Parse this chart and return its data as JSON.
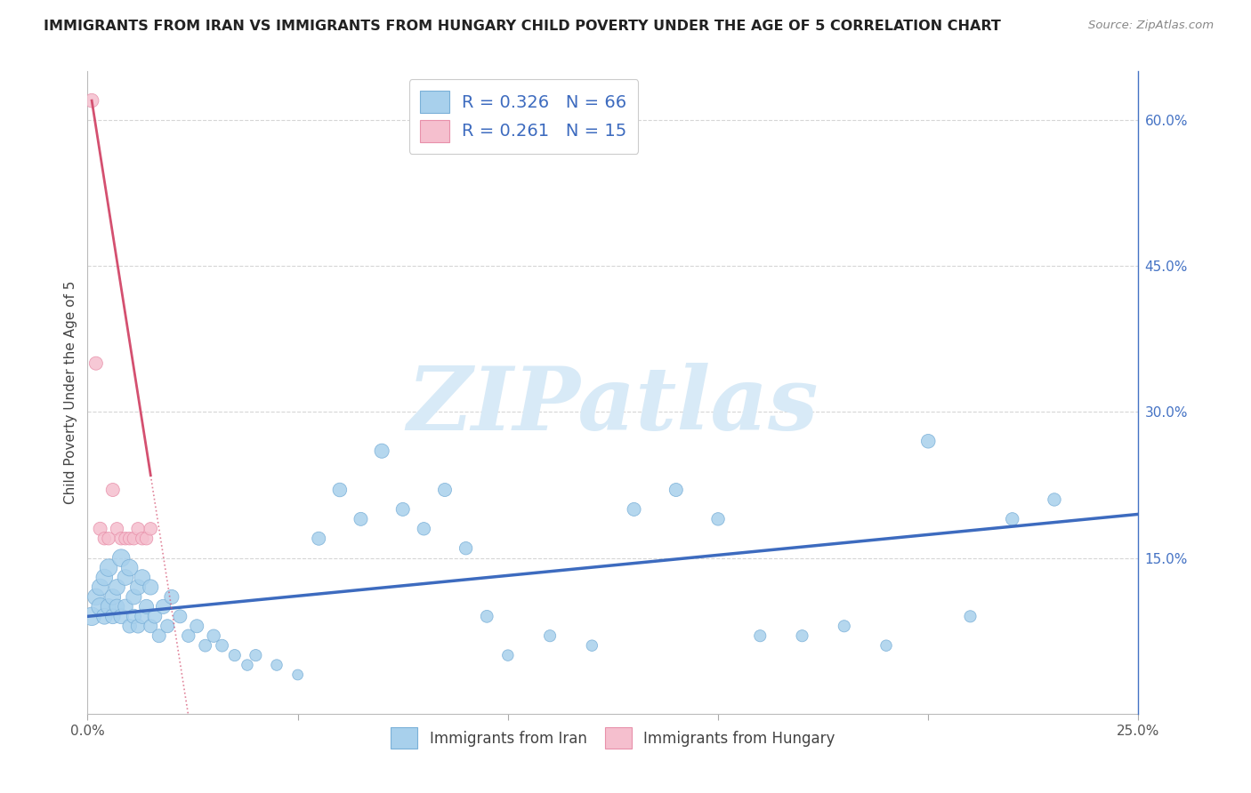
{
  "title": "IMMIGRANTS FROM IRAN VS IMMIGRANTS FROM HUNGARY CHILD POVERTY UNDER THE AGE OF 5 CORRELATION CHART",
  "source": "Source: ZipAtlas.com",
  "ylabel": "Child Poverty Under the Age of 5",
  "xlim": [
    0.0,
    0.25
  ],
  "ylim": [
    -0.01,
    0.65
  ],
  "iran_R": 0.326,
  "iran_N": 66,
  "hungary_R": 0.261,
  "hungary_N": 15,
  "iran_color": "#a8d0ec",
  "iran_edge_color": "#7ab0d8",
  "hungary_color": "#f5bfce",
  "hungary_edge_color": "#e890aa",
  "iran_line_color": "#3d6bbf",
  "hungary_line_color": "#d45070",
  "watermark_color": "#d8eaf7",
  "grid_color": "#cccccc",
  "iran_scatter_x": [
    0.001,
    0.002,
    0.003,
    0.003,
    0.004,
    0.004,
    0.005,
    0.005,
    0.006,
    0.006,
    0.007,
    0.007,
    0.008,
    0.008,
    0.009,
    0.009,
    0.01,
    0.01,
    0.011,
    0.011,
    0.012,
    0.012,
    0.013,
    0.013,
    0.014,
    0.015,
    0.015,
    0.016,
    0.017,
    0.018,
    0.019,
    0.02,
    0.022,
    0.024,
    0.026,
    0.028,
    0.03,
    0.032,
    0.035,
    0.038,
    0.04,
    0.045,
    0.05,
    0.055,
    0.06,
    0.065,
    0.07,
    0.075,
    0.08,
    0.085,
    0.09,
    0.095,
    0.1,
    0.11,
    0.12,
    0.13,
    0.14,
    0.15,
    0.16,
    0.17,
    0.18,
    0.19,
    0.2,
    0.21,
    0.22,
    0.23
  ],
  "iran_scatter_y": [
    0.09,
    0.11,
    0.1,
    0.12,
    0.09,
    0.13,
    0.1,
    0.14,
    0.09,
    0.11,
    0.1,
    0.12,
    0.09,
    0.15,
    0.1,
    0.13,
    0.08,
    0.14,
    0.09,
    0.11,
    0.08,
    0.12,
    0.09,
    0.13,
    0.1,
    0.08,
    0.12,
    0.09,
    0.07,
    0.1,
    0.08,
    0.11,
    0.09,
    0.07,
    0.08,
    0.06,
    0.07,
    0.06,
    0.05,
    0.04,
    0.05,
    0.04,
    0.03,
    0.17,
    0.22,
    0.19,
    0.26,
    0.2,
    0.18,
    0.22,
    0.16,
    0.09,
    0.05,
    0.07,
    0.06,
    0.2,
    0.22,
    0.19,
    0.07,
    0.07,
    0.08,
    0.06,
    0.27,
    0.09,
    0.19,
    0.21
  ],
  "iran_scatter_size": [
    120,
    100,
    110,
    100,
    90,
    100,
    90,
    110,
    80,
    90,
    80,
    90,
    80,
    110,
    80,
    90,
    70,
    100,
    75,
    85,
    70,
    85,
    75,
    90,
    75,
    65,
    85,
    70,
    65,
    75,
    65,
    75,
    65,
    60,
    65,
    55,
    60,
    55,
    50,
    45,
    50,
    45,
    40,
    65,
    70,
    65,
    75,
    65,
    60,
    65,
    60,
    55,
    45,
    50,
    45,
    65,
    65,
    60,
    50,
    50,
    50,
    45,
    70,
    50,
    60,
    60
  ],
  "hungary_scatter_x": [
    0.001,
    0.002,
    0.003,
    0.004,
    0.005,
    0.006,
    0.007,
    0.008,
    0.009,
    0.01,
    0.011,
    0.012,
    0.013,
    0.014,
    0.015
  ],
  "hungary_scatter_y": [
    0.62,
    0.35,
    0.18,
    0.17,
    0.17,
    0.22,
    0.18,
    0.17,
    0.17,
    0.17,
    0.17,
    0.18,
    0.17,
    0.17,
    0.18
  ],
  "hungary_scatter_size": [
    70,
    65,
    65,
    60,
    60,
    65,
    60,
    60,
    60,
    60,
    60,
    60,
    60,
    60,
    60
  ],
  "iran_trend_x0": 0.0,
  "iran_trend_x1": 0.25,
  "iran_trend_y0": 0.09,
  "iran_trend_y1": 0.195,
  "hungary_trend_solid_x0": 0.001,
  "hungary_trend_solid_x1": 0.015,
  "hungary_trend_dotted_x0": 0.015,
  "hungary_trend_dotted_x1": 0.25,
  "hungary_trend_y0": 0.235,
  "hungary_trend_y1": 0.62
}
